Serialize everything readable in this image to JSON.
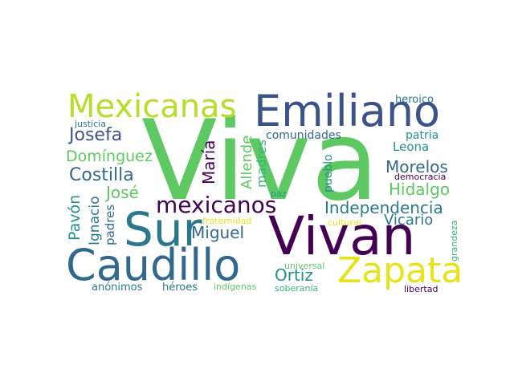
{
  "colors": {
    "background": "#ffffff",
    "green": "#5ec962",
    "deep_purple": "#440154",
    "indigo": "#3b528b",
    "teal": "#21918c",
    "steel": "#31688e",
    "sea": "#2a788e",
    "lime": "#b5de2b",
    "yellow": "#e5e419",
    "mint": "#35b779"
  },
  "words": {
    "viva": "Viva",
    "vivan": "Vivan",
    "emiliano": "Emiliano",
    "mexicanas": "Mexicanas",
    "sur": "Sur",
    "caudillo": "Caudillo",
    "zapata": "Zapata",
    "mexicanos": "mexicanos",
    "independencia": "Independencia",
    "josefa": "Josefa",
    "dominguez": "Domínguez",
    "costilla": "Costilla",
    "jose": "José",
    "miguel": "Miguel",
    "morelos": "Morelos",
    "hidalgo": "Hidalgo",
    "leona": "Leona",
    "vicario": "Vicario",
    "ortiz": "Ortiz",
    "comunidades": "comunidades",
    "patria": "patria",
    "heroico": "heroico",
    "justicia": "justicia",
    "democracia": "democracia",
    "paz": "paz",
    "fraternidad": "fraternidad",
    "cultural": "cultural",
    "universal": "universal",
    "anonimos": "anónimos",
    "heroes": "héroes",
    "indigenas": "indígenas",
    "soberania": "soberanía",
    "libertad": "libertad",
    "maria": "María",
    "allende": "Allende",
    "madres": "madres",
    "pueblo": "pueblo",
    "pavon": "Pavón",
    "ignacio": "Ignacio",
    "padres": "padres",
    "grandeza": "grandeza"
  }
}
